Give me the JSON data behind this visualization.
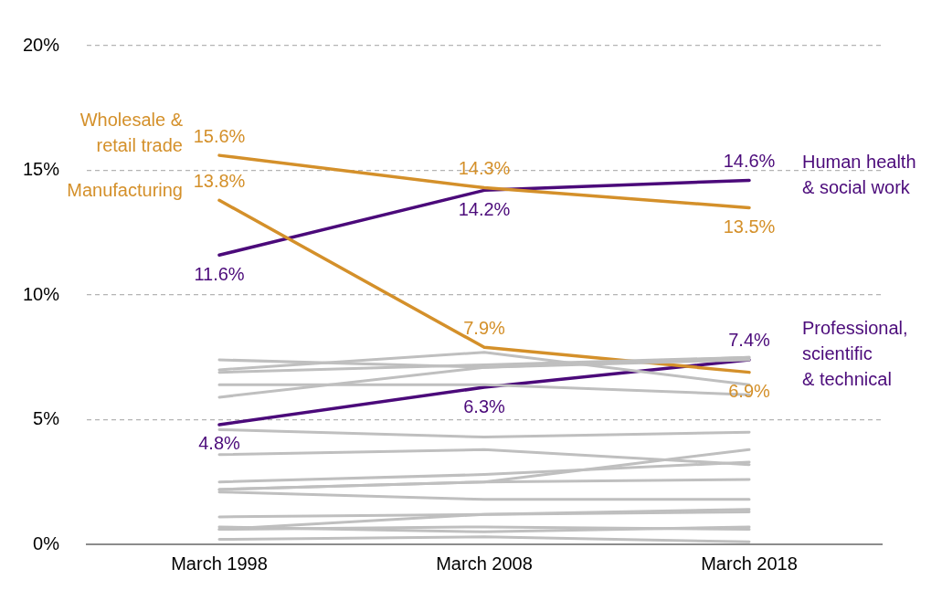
{
  "chart_data": {
    "type": "line",
    "categories": [
      "March 1998",
      "March 2008",
      "March 2018"
    ],
    "ylim": [
      0,
      20
    ],
    "yticks": [
      {
        "value": 0,
        "label": "0%"
      },
      {
        "value": 5,
        "label": "5%"
      },
      {
        "value": 10,
        "label": "10%"
      },
      {
        "value": 15,
        "label": "15%"
      },
      {
        "value": 20,
        "label": "20%"
      }
    ],
    "grid": "y",
    "legend": false,
    "marker": "none",
    "line_style": "solid",
    "series": [
      {
        "color": "#bfbfbf",
        "values": [
          7.4,
          7.1,
          7.5
        ]
      },
      {
        "color": "#bfbfbf",
        "values": [
          6.9,
          7.2,
          7.5
        ]
      },
      {
        "color": "#bfbfbf",
        "values": [
          7.0,
          7.7,
          6.4
        ]
      },
      {
        "color": "#bfbfbf",
        "values": [
          6.4,
          6.4,
          6.0
        ]
      },
      {
        "color": "#bfbfbf",
        "values": [
          5.9,
          7.1,
          7.4
        ]
      },
      {
        "color": "#bfbfbf",
        "values": [
          4.6,
          4.3,
          4.5
        ]
      },
      {
        "color": "#bfbfbf",
        "values": [
          3.6,
          3.8,
          3.2
        ]
      },
      {
        "color": "#bfbfbf",
        "values": [
          2.5,
          2.8,
          3.3
        ]
      },
      {
        "color": "#bfbfbf",
        "values": [
          2.2,
          2.5,
          3.8
        ]
      },
      {
        "color": "#bfbfbf",
        "values": [
          2.2,
          2.5,
          2.6
        ]
      },
      {
        "color": "#bfbfbf",
        "values": [
          2.1,
          1.8,
          1.8
        ]
      },
      {
        "color": "#bfbfbf",
        "values": [
          1.1,
          1.2,
          1.4
        ]
      },
      {
        "color": "#bfbfbf",
        "values": [
          0.6,
          1.2,
          1.3
        ]
      },
      {
        "color": "#bfbfbf",
        "values": [
          0.6,
          0.7,
          0.6
        ]
      },
      {
        "color": "#bfbfbf",
        "values": [
          0.7,
          0.5,
          0.7
        ]
      },
      {
        "color": "#bfbfbf",
        "values": [
          0.2,
          0.3,
          0.1
        ]
      },
      {
        "name": "Wholesale & retail trade",
        "color": "#d4902a",
        "values": [
          15.6,
          14.3,
          13.5
        ],
        "value_labels": [
          "15.6%",
          "14.3%",
          "13.5%"
        ]
      },
      {
        "name": "Manufacturing",
        "color": "#d4902a",
        "values": [
          13.8,
          7.9,
          6.9
        ],
        "value_labels": [
          "13.8%",
          "7.9%",
          "6.9%"
        ]
      },
      {
        "name": "Human health & social work",
        "color": "#4b0a7a",
        "values": [
          11.6,
          14.2,
          14.6
        ],
        "value_labels": [
          "11.6%",
          "14.2%",
          "14.6%"
        ]
      },
      {
        "name": "Professional, scientific & technical",
        "color": "#4b0a7a",
        "values": [
          4.8,
          6.3,
          7.4
        ],
        "value_labels": [
          "4.8%",
          "6.3%",
          "7.4%"
        ]
      }
    ]
  }
}
